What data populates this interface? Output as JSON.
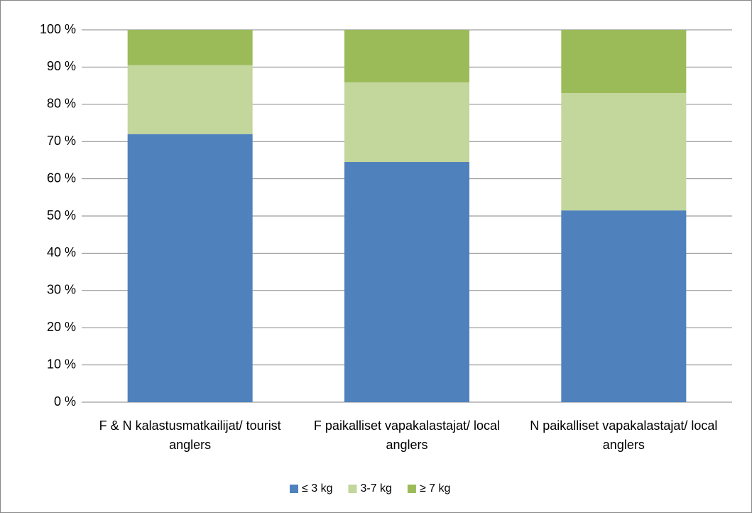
{
  "chart_data": {
    "type": "bar",
    "stacked": true,
    "categories": [
      "F & N kalastusmatkailijat/ tourist anglers",
      "F paikalliset vapakalastajat/ local anglers",
      "N paikalliset vapakalastajat/ local anglers"
    ],
    "series": [
      {
        "name": "≤ 3 kg",
        "color": "#4f81bd",
        "values": [
          72,
          64.5,
          51.5
        ]
      },
      {
        "name": "3-7 kg",
        "color": "#c3d69b",
        "values": [
          18.5,
          21.4,
          31.5
        ]
      },
      {
        "name": "≥ 7 kg",
        "color": "#9bbb59",
        "values": [
          9.5,
          14.1,
          17
        ]
      }
    ],
    "ylim": [
      0,
      100
    ],
    "yticks": [
      {
        "value": 0,
        "label": "0 %"
      },
      {
        "value": 10,
        "label": "10 %"
      },
      {
        "value": 20,
        "label": "20 %"
      },
      {
        "value": 30,
        "label": "30 %"
      },
      {
        "value": 40,
        "label": "40 %"
      },
      {
        "value": 50,
        "label": "50 %"
      },
      {
        "value": 60,
        "label": "60 %"
      },
      {
        "value": 70,
        "label": "70 %"
      },
      {
        "value": 80,
        "label": "80 %"
      },
      {
        "value": 90,
        "label": "90 %"
      },
      {
        "value": 100,
        "label": "100 %"
      }
    ],
    "grid": true,
    "legend": "bottom"
  }
}
